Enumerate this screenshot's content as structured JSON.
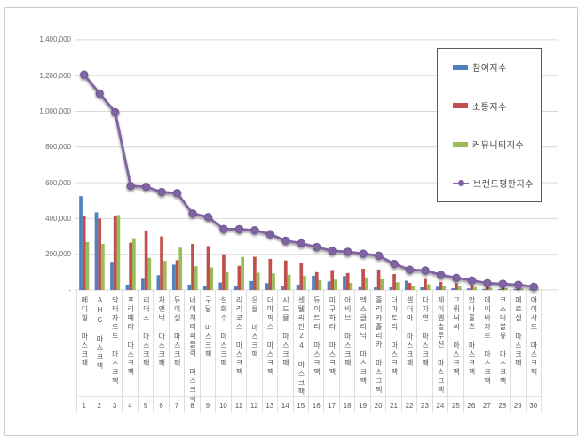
{
  "page": {
    "background": "#ffffff",
    "frame_border_color": "#c9c9c9",
    "gridline_color": "#d9d9d9",
    "axis_text_color": "#595959"
  },
  "legend": {
    "items": [
      {
        "label": "참여지수",
        "color": "#4F81BD",
        "marker": "bar"
      },
      {
        "label": "소통지수",
        "color": "#C0504D",
        "marker": "bar"
      },
      {
        "label": "커뮤니티지수",
        "color": "#9BBB59",
        "marker": "bar"
      },
      {
        "label": "브랜드평판지수",
        "color": "#8064A2",
        "marker": "line"
      }
    ]
  },
  "chart_data": {
    "type": "bar",
    "subtype": "grouped bars with overlay line (combo chart)",
    "title": "",
    "xlabel": "",
    "ylabel": "",
    "ylim": [
      0,
      1400000
    ],
    "ytick_step": 200000,
    "grid": true,
    "legend_position": "right-top",
    "y_tick_labels": [
      "1,400,000",
      "1,200,000",
      "1,000,000",
      "800,000",
      "600,000",
      "400,000",
      "200,000",
      "-"
    ],
    "categories": [
      "메디힐 마스크팩",
      "AHC 마스크팩",
      "닥터자르트 마스크팩",
      "프리메라 마스크팩",
      "리더스 마스크팩",
      "차앤박 마스크팩",
      "듀이셀 마스크팩",
      "네이처리퍼블릭 마스크팩",
      "구달 마스크팩",
      "설화수 마스크팩",
      "리리코스 마스크팩",
      "은율 마스크팩",
      "더마픽스 마스크팩",
      "시드물 마스크팩",
      "센텔리안24 마스크팩",
      "듀이트리 마스크팩",
      "미구하라 마스크팩",
      "아비브 마스크팩",
      "맥스클리닉 마스크팩",
      "홀리카홀리카 마스크팩",
      "더마토리 마스크팩",
      "셀더마 마스크팩",
      "다자연 마스크팩",
      "제이엠솔루션 마스크팩",
      "그뤼너씨 마스크팩",
      "안나홀츠 마스크팩",
      "에이바자르 마스크팩",
      "코스더블유 마스크팩",
      "메르셀 마스크팩",
      "아이샤드 마스크팩"
    ],
    "ranks": [
      1,
      2,
      3,
      4,
      5,
      6,
      7,
      8,
      9,
      10,
      11,
      12,
      13,
      14,
      15,
      16,
      17,
      18,
      19,
      20,
      21,
      22,
      23,
      24,
      25,
      26,
      27,
      28,
      29,
      30
    ],
    "series": [
      {
        "name": "참여지수",
        "render": "bar",
        "color": "#4F81BD",
        "values": [
          525000,
          435000,
          158000,
          30000,
          63000,
          83000,
          142000,
          30000,
          22000,
          42000,
          20000,
          50000,
          38000,
          20000,
          30000,
          80000,
          48000,
          78000,
          16000,
          15000,
          15000,
          52000,
          15000,
          18000,
          10000,
          9000,
          6000,
          5000,
          5000,
          4000
        ]
      },
      {
        "name": "소통지수",
        "render": "bar",
        "color": "#C0504D",
        "values": [
          413000,
          400000,
          417000,
          265000,
          333000,
          300000,
          167000,
          258000,
          246000,
          200000,
          135000,
          186000,
          174000,
          165000,
          150000,
          100000,
          112000,
          95000,
          119000,
          115000,
          89000,
          40000,
          62000,
          45000,
          38000,
          28000,
          22000,
          20000,
          18000,
          10000
        ]
      },
      {
        "name": "커뮤니티지수",
        "render": "bar",
        "color": "#9BBB59",
        "values": [
          268000,
          258000,
          420000,
          290000,
          180000,
          163000,
          237000,
          133000,
          127000,
          100000,
          185000,
          97000,
          93000,
          85000,
          80000,
          55000,
          58000,
          40000,
          70000,
          60000,
          43000,
          21000,
          32000,
          24000,
          21000,
          16000,
          12000,
          10000,
          8000,
          5000
        ]
      },
      {
        "name": "브랜드평판지수",
        "render": "line",
        "color": "#8064A2",
        "values": [
          1205000,
          1100000,
          995000,
          582000,
          577000,
          548000,
          542000,
          428000,
          408000,
          341000,
          340000,
          334000,
          312000,
          276000,
          261000,
          240000,
          219000,
          214000,
          203000,
          192000,
          146000,
          113000,
          109000,
          85000,
          68000,
          53000,
          38000,
          34000,
          29000,
          18000
        ]
      }
    ]
  }
}
